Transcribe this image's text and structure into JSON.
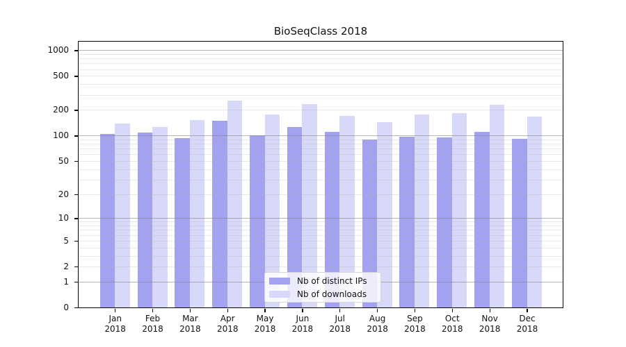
{
  "chart_data": {
    "type": "bar",
    "title": "BioSeqClass 2018",
    "year_label": "2018",
    "categories": [
      "Jan",
      "Feb",
      "Mar",
      "Apr",
      "May",
      "Jun",
      "Jul",
      "Aug",
      "Sep",
      "Oct",
      "Nov",
      "Dec"
    ],
    "series": [
      {
        "name": "Nb of distinct IPs",
        "key": "distinct-ips",
        "color": "#a2a2f0",
        "values": [
          104,
          109,
          93,
          150,
          101,
          127,
          110,
          90,
          97,
          95,
          110,
          91
        ]
      },
      {
        "name": "Nb of downloads",
        "key": "downloads",
        "color": "#d8d8f8",
        "values": [
          139,
          127,
          151,
          258,
          177,
          234,
          171,
          145,
          178,
          184,
          232,
          168
        ]
      }
    ],
    "yscale": "log1p",
    "ylim": [
      0,
      1270
    ],
    "yticks": [
      0,
      1,
      2,
      5,
      10,
      20,
      50,
      100,
      200,
      500,
      1000
    ],
    "grid": {
      "major": [
        1,
        10,
        100,
        1000
      ],
      "minor": [
        2,
        3,
        4,
        5,
        6,
        7,
        8,
        9,
        20,
        30,
        40,
        50,
        60,
        70,
        80,
        90,
        200,
        300,
        400,
        500,
        600,
        700,
        800,
        900
      ],
      "major_color": "rgba(130,130,130,0.6)",
      "minor_color": "rgba(175,175,175,0.3)"
    },
    "legend_position": "lower center",
    "background_color": "#ffffff",
    "spine_color": "#000000"
  }
}
